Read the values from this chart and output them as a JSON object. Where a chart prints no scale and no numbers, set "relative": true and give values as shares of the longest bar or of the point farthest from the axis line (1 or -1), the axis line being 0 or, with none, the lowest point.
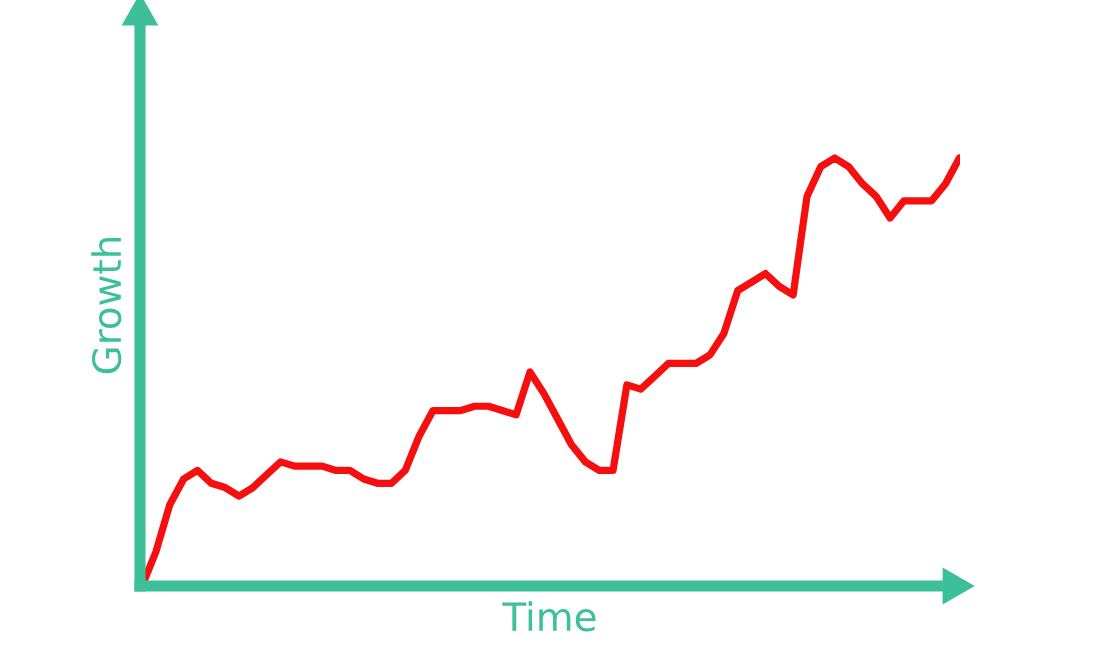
{
  "chart_data": {
    "type": "line",
    "xlabel": "Time",
    "ylabel": "Growth",
    "relative": true,
    "grid": false,
    "legend": false,
    "marker": "none",
    "line_style": "solid",
    "categories": [
      null,
      null,
      null,
      null,
      null,
      null,
      null,
      null,
      null,
      null,
      null,
      null,
      null,
      null,
      null,
      null,
      null,
      null,
      null,
      null,
      null,
      null,
      null,
      null,
      null,
      null,
      null,
      null,
      null,
      null,
      null,
      null,
      null,
      null,
      null,
      null,
      null,
      null,
      null,
      null,
      null,
      null,
      null,
      null,
      null,
      null,
      null,
      null,
      null,
      null,
      null,
      null,
      null,
      null,
      null,
      null,
      null,
      null,
      null,
      null
    ],
    "series": [
      {
        "color": "#f50f0f",
        "values": [
          0,
          0.08,
          0.19,
          0.25,
          0.27,
          0.24,
          0.23,
          0.21,
          0.23,
          0.26,
          0.29,
          0.28,
          0.28,
          0.28,
          0.27,
          0.27,
          0.25,
          0.24,
          0.24,
          0.27,
          0.35,
          0.41,
          0.41,
          0.41,
          0.42,
          0.42,
          0.41,
          0.4,
          0.5,
          0.45,
          0.39,
          0.33,
          0.29,
          0.27,
          0.27,
          0.47,
          0.46,
          0.49,
          0.52,
          0.52,
          0.52,
          0.54,
          0.59,
          0.69,
          0.71,
          0.73,
          0.7,
          0.68,
          0.91,
          0.98,
          1.0,
          0.98,
          0.94,
          0.91,
          0.86,
          0.9,
          0.9,
          0.9,
          0.94,
          1.0
        ]
      }
    ]
  }
}
